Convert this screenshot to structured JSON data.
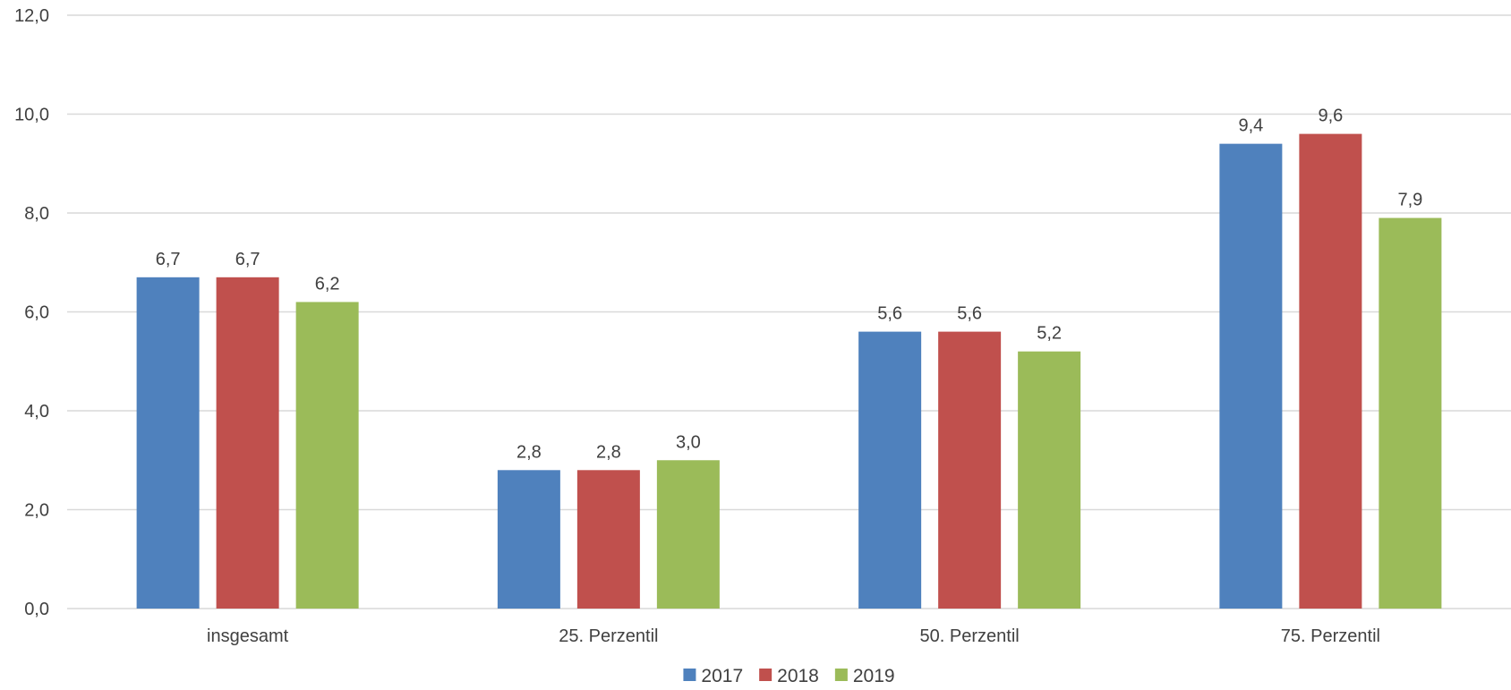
{
  "chart_data": {
    "type": "bar",
    "categories": [
      "insgesamt",
      "25. Perzentil",
      "50. Perzentil",
      "75. Perzentil"
    ],
    "series": [
      {
        "name": "2017",
        "color": "#4f81bd",
        "values": [
          6.7,
          2.8,
          5.6,
          9.4
        ],
        "labels": [
          "6,7",
          "2,8",
          "5,6",
          "9,4"
        ]
      },
      {
        "name": "2018",
        "color": "#c0504d",
        "values": [
          6.7,
          2.8,
          5.6,
          9.6
        ],
        "labels": [
          "6,7",
          "2,8",
          "5,6",
          "9,6"
        ]
      },
      {
        "name": "2019",
        "color": "#9bbb59",
        "values": [
          6.2,
          3.0,
          5.2,
          7.9
        ],
        "labels": [
          "6,2",
          "3,0",
          "5,2",
          "7,9"
        ]
      }
    ],
    "ylim": [
      0,
      12
    ],
    "yticks": [
      0,
      2,
      4,
      6,
      8,
      10,
      12
    ],
    "ytick_labels": [
      "0,0",
      "2,0",
      "4,0",
      "6,0",
      "8,0",
      "10,0",
      "12,0"
    ],
    "grid": true,
    "legend": "bottom-center",
    "title": "",
    "xlabel": "",
    "ylabel": ""
  }
}
